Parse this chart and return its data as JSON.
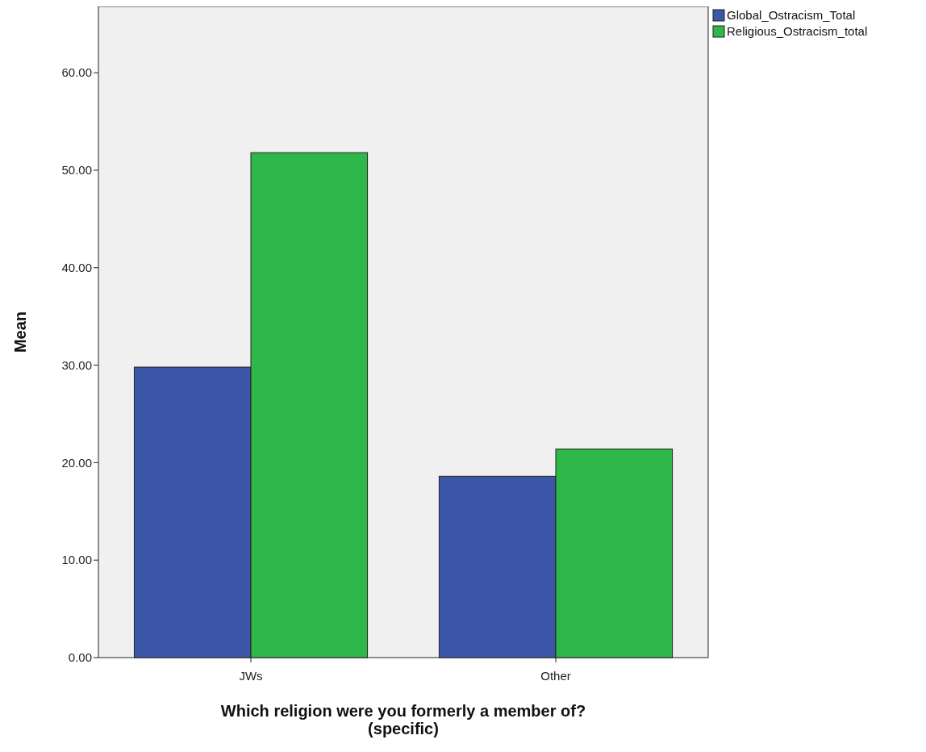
{
  "chart_data": {
    "type": "bar",
    "xlabel": "Which religion were you formerly a member of? (specific)",
    "ylabel": "Mean",
    "categories": [
      "JWs",
      "Other"
    ],
    "series": [
      {
        "name": "Global_Ostracism_Total",
        "color": "#3c56a8",
        "values": [
          29.8,
          18.6
        ]
      },
      {
        "name": "Religious_Ostracism_total",
        "color": "#2fb84a",
        "values": [
          51.8,
          21.4
        ]
      }
    ],
    "ylim": [
      0,
      66.8
    ],
    "yticks": [
      {
        "value": 0,
        "label": "0.00"
      },
      {
        "value": 10,
        "label": "10.00"
      },
      {
        "value": 20,
        "label": "20.00"
      },
      {
        "value": 30,
        "label": "30.00"
      },
      {
        "value": 40,
        "label": "40.00"
      },
      {
        "value": 50,
        "label": "50.00"
      },
      {
        "value": 60,
        "label": "60.00"
      }
    ],
    "grid": false,
    "legend": "top right"
  }
}
